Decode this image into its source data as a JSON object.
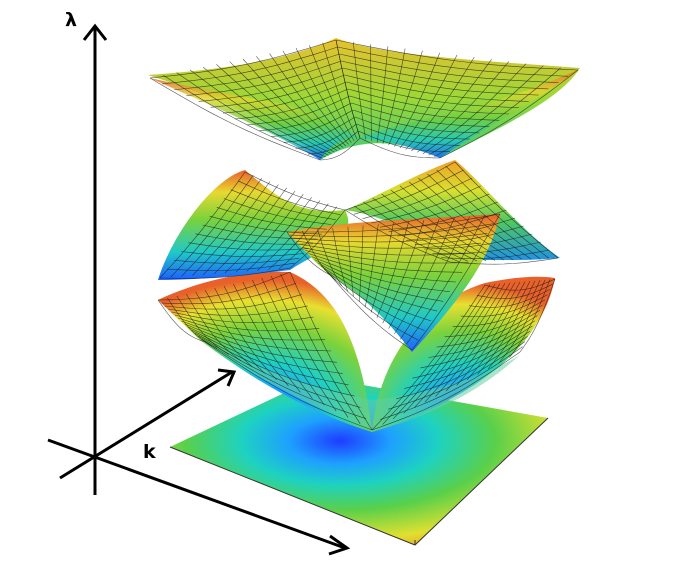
{
  "axes": {
    "vertical_label": "λ",
    "horizontal_label": "k"
  },
  "colors": {
    "axis": "#000000",
    "low": "#1e3cff",
    "mid": "#1ec8c8",
    "mid_high": "#7ad23c",
    "high": "#f0e030",
    "peak": "#e8502a",
    "mesh_line": "#1a1a1a"
  },
  "surfaces": [
    {
      "name": "upper-band"
    },
    {
      "name": "middle-band"
    },
    {
      "name": "lower-band"
    }
  ],
  "projection": {
    "name": "base-contour-plane"
  }
}
